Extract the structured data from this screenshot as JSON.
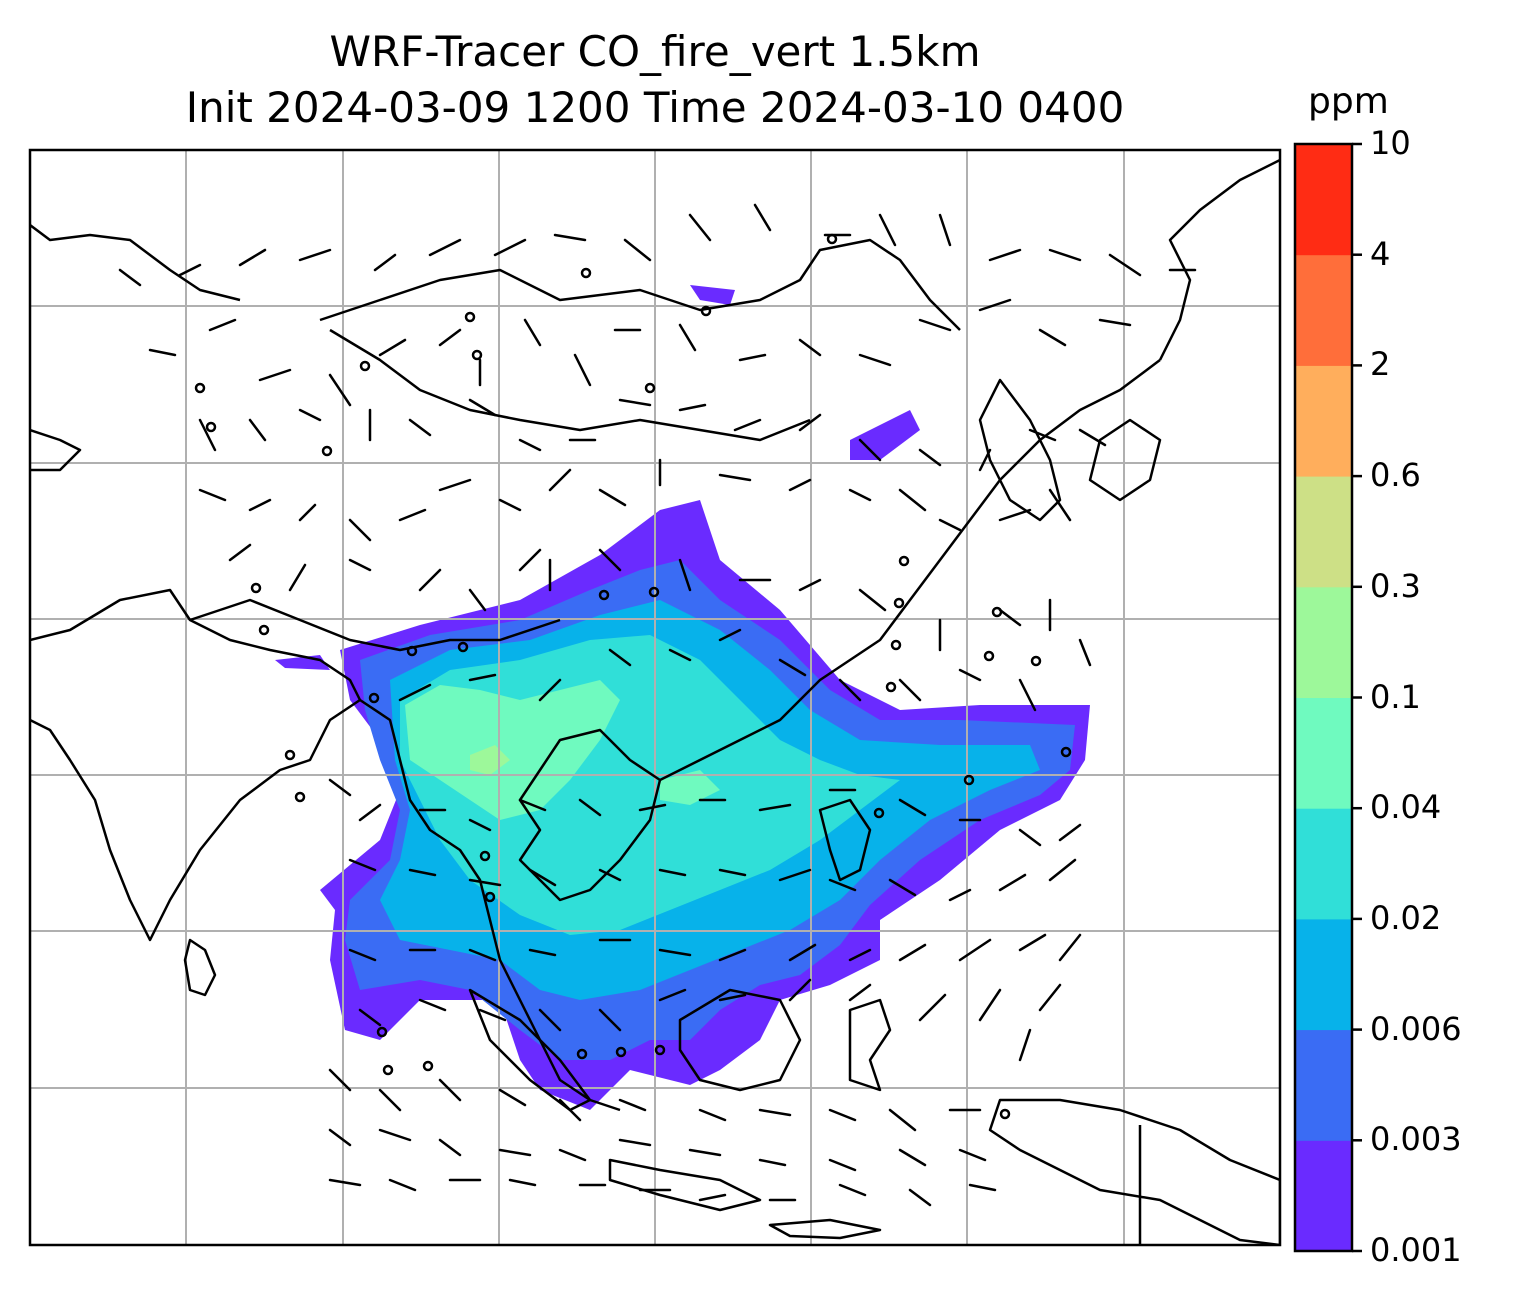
{
  "title": {
    "line1": "WRF-Tracer CO_fire_vert 1.5km",
    "line2": "Init 2024-03-09 1200 Time 2024-03-10 0400"
  },
  "colorbar": {
    "unit": "ppm",
    "levels": [
      "0.001",
      "0.003",
      "0.006",
      "0.02",
      "0.04",
      "0.1",
      "0.3",
      "0.6",
      "2",
      "4",
      "10"
    ],
    "colors": [
      "#6a2bff",
      "#3a6cf4",
      "#07b2ea",
      "#30dfd8",
      "#6ffabf",
      "#9df89a",
      "#cde086",
      "#ffae5c",
      "#ff6e3a",
      "#ff2c14"
    ]
  },
  "map": {
    "gridlines": true,
    "grid_color": "#b0b0b0",
    "coastline_color": "#000000"
  }
}
